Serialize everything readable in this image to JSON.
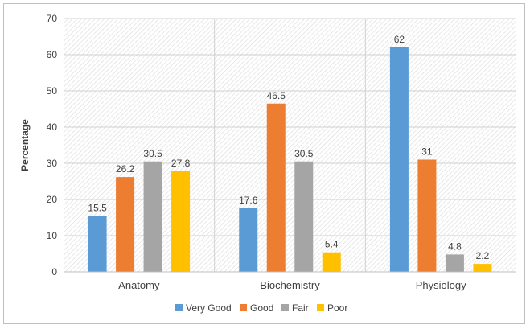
{
  "chart_data": {
    "type": "bar",
    "title": "",
    "xlabel": "",
    "ylabel": "Percentage",
    "ylim": [
      0,
      70
    ],
    "yticks": [
      0,
      10,
      20,
      30,
      40,
      50,
      60,
      70
    ],
    "categories": [
      "Anatomy",
      "Biochemistry",
      "Physiology"
    ],
    "series": [
      {
        "name": "Very Good",
        "color": "#5b9bd5",
        "values": [
          15.5,
          17.6,
          62
        ]
      },
      {
        "name": "Good",
        "color": "#ed7d31",
        "values": [
          26.2,
          46.5,
          31
        ]
      },
      {
        "name": "Fair",
        "color": "#a5a5a5",
        "values": [
          30.5,
          30.5,
          4.8
        ]
      },
      {
        "name": "Poor",
        "color": "#ffc000",
        "values": [
          27.8,
          5.4,
          2.2
        ]
      }
    ],
    "grid": true,
    "background_pattern": "hatched",
    "legend": "bottom"
  }
}
